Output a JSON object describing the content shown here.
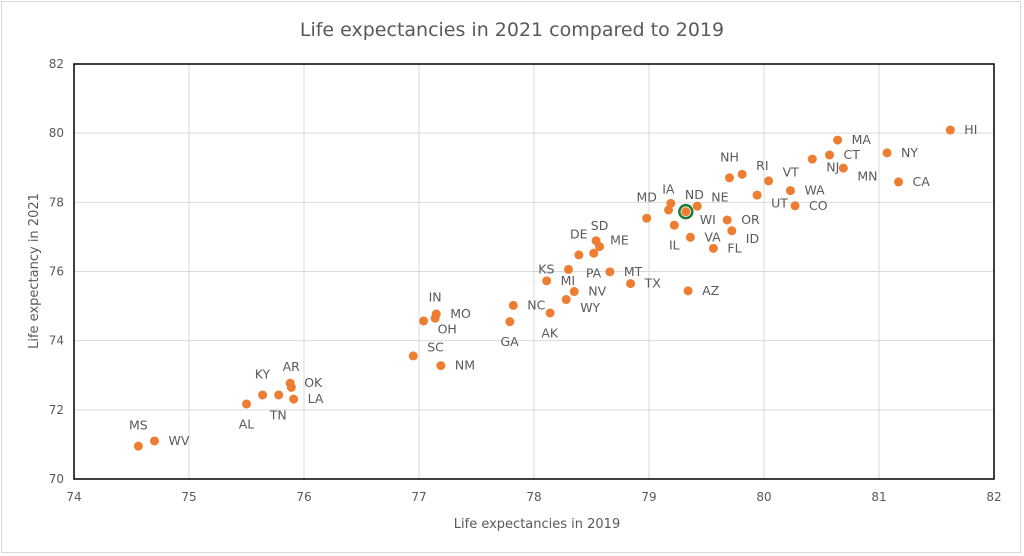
{
  "chart_data": {
    "type": "scatter",
    "title": "Life expectancies in 2021 compared to 2019",
    "xlabel": "Life expectancies in 2019",
    "ylabel": "Life expectancy in 2021",
    "xlim": [
      74,
      82
    ],
    "ylim": [
      70,
      82
    ],
    "xticks": [
      74,
      75,
      76,
      77,
      78,
      79,
      80,
      81,
      82
    ],
    "yticks": [
      70,
      72,
      74,
      76,
      78,
      80,
      82
    ],
    "grid": true,
    "legend": "none",
    "marker_color": "#ED7D31",
    "highlight_color": "#1E7B34",
    "highlighted": "WI",
    "points": [
      {
        "label": "HI",
        "x": 81.62,
        "y": 80.09
      },
      {
        "label": "MA",
        "x": 80.64,
        "y": 79.8
      },
      {
        "label": "NY",
        "x": 81.07,
        "y": 79.43
      },
      {
        "label": "CT",
        "x": 80.57,
        "y": 79.37
      },
      {
        "label": "NJ",
        "x": 80.42,
        "y": 79.25
      },
      {
        "label": "MN",
        "x": 80.69,
        "y": 78.99
      },
      {
        "label": "CA",
        "x": 81.17,
        "y": 78.59
      },
      {
        "label": "RI",
        "x": 79.81,
        "y": 78.81
      },
      {
        "label": "NH",
        "x": 79.7,
        "y": 78.71
      },
      {
        "label": "VT",
        "x": 80.04,
        "y": 78.62
      },
      {
        "label": "WA",
        "x": 80.23,
        "y": 78.34
      },
      {
        "label": "UT",
        "x": 79.94,
        "y": 78.21
      },
      {
        "label": "CO",
        "x": 80.27,
        "y": 77.9
      },
      {
        "label": "ND",
        "x": 79.19,
        "y": 77.97
      },
      {
        "label": "IA",
        "x": 79.17,
        "y": 77.78
      },
      {
        "label": "WI",
        "x": 79.32,
        "y": 77.73
      },
      {
        "label": "NE",
        "x": 79.42,
        "y": 77.89
      },
      {
        "label": "MD",
        "x": 78.98,
        "y": 77.54
      },
      {
        "label": "IL",
        "x": 79.22,
        "y": 77.34
      },
      {
        "label": "OR",
        "x": 79.68,
        "y": 77.49
      },
      {
        "label": "ID",
        "x": 79.72,
        "y": 77.18
      },
      {
        "label": "VA",
        "x": 79.36,
        "y": 76.99
      },
      {
        "label": "FL",
        "x": 79.56,
        "y": 76.67
      },
      {
        "label": "ME",
        "x": 78.54,
        "y": 76.89
      },
      {
        "label": "SD",
        "x": 78.57,
        "y": 76.72
      },
      {
        "label": "PA",
        "x": 78.52,
        "y": 76.53
      },
      {
        "label": "DE",
        "x": 78.39,
        "y": 76.48
      },
      {
        "label": "KS",
        "x": 78.3,
        "y": 76.06
      },
      {
        "label": "MT",
        "x": 78.66,
        "y": 75.99
      },
      {
        "label": "TX",
        "x": 78.84,
        "y": 75.65
      },
      {
        "label": "AZ",
        "x": 79.34,
        "y": 75.44
      },
      {
        "label": "MI",
        "x": 78.11,
        "y": 75.73
      },
      {
        "label": "NV",
        "x": 78.35,
        "y": 75.42
      },
      {
        "label": "WY",
        "x": 78.28,
        "y": 75.19
      },
      {
        "label": "NC",
        "x": 77.82,
        "y": 75.02
      },
      {
        "label": "AK",
        "x": 78.14,
        "y": 74.8
      },
      {
        "label": "GA",
        "x": 77.79,
        "y": 74.55
      },
      {
        "label": "MO",
        "x": 77.15,
        "y": 74.77
      },
      {
        "label": "IN",
        "x": 77.14,
        "y": 74.65
      },
      {
        "label": "OH",
        "x": 77.04,
        "y": 74.57
      },
      {
        "label": "SC",
        "x": 76.95,
        "y": 73.56
      },
      {
        "label": "NM",
        "x": 77.19,
        "y": 73.28
      },
      {
        "label": "OK",
        "x": 75.88,
        "y": 72.77
      },
      {
        "label": "AR",
        "x": 75.89,
        "y": 72.65
      },
      {
        "label": "KY",
        "x": 75.64,
        "y": 72.43
      },
      {
        "label": "TN",
        "x": 75.78,
        "y": 72.43
      },
      {
        "label": "LA",
        "x": 75.91,
        "y": 72.31
      },
      {
        "label": "AL",
        "x": 75.5,
        "y": 72.17
      },
      {
        "label": "WV",
        "x": 74.7,
        "y": 71.1
      },
      {
        "label": "MS",
        "x": 74.56,
        "y": 70.95
      }
    ]
  }
}
